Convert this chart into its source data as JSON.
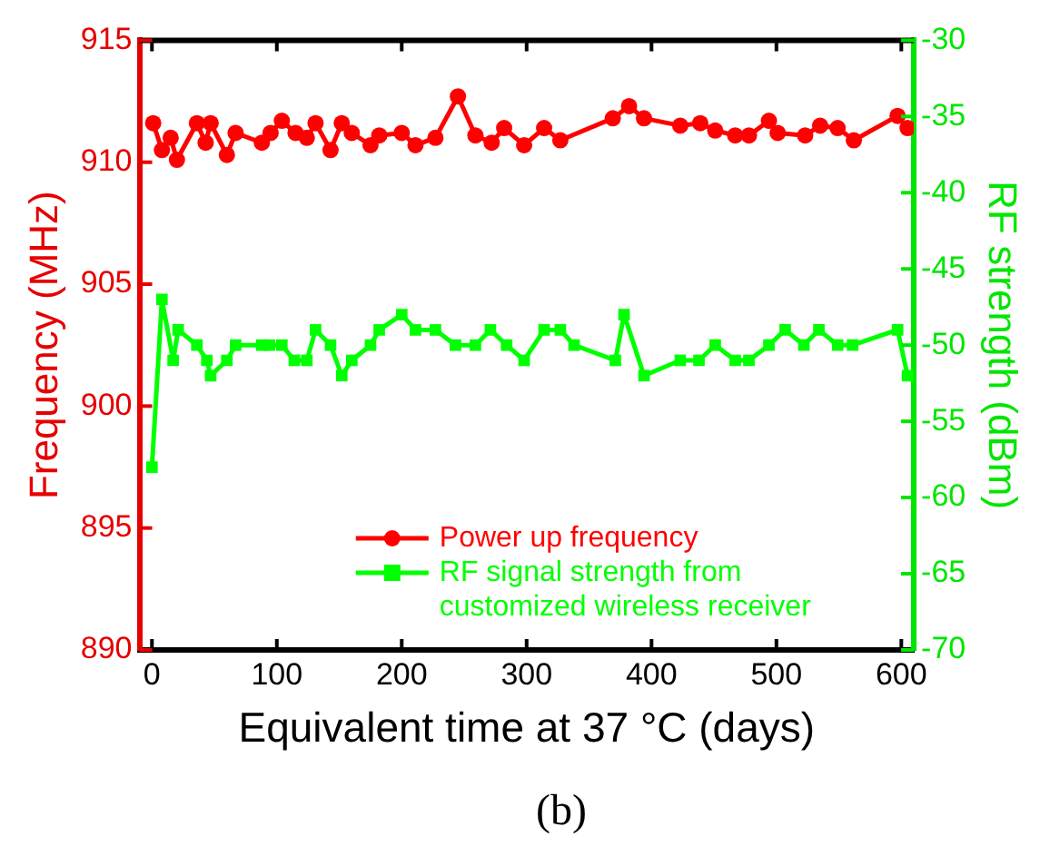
{
  "chart_data": {
    "type": "line",
    "xlabel": "Equivalent time at 37 °C (days)",
    "ylabel": "Frequency (MHz)",
    "y2label": "RF strength (dBm)",
    "xlim": [
      -10,
      610
    ],
    "xticks": [
      0,
      100,
      200,
      300,
      400,
      500,
      600
    ],
    "ylim": [
      890,
      915
    ],
    "yticks": [
      890,
      895,
      900,
      905,
      910,
      915
    ],
    "y2lim": [
      -70,
      -30
    ],
    "y2ticks": [
      -70,
      -65,
      -60,
      -55,
      -50,
      -45,
      -40,
      -35,
      -30
    ],
    "legend": "bottom",
    "grid": false,
    "annotations": [
      "(b)"
    ],
    "series": [
      {
        "name": "Power up frequency",
        "color": "#ff0000",
        "marker": "circle",
        "x": [
          1,
          8,
          15,
          20,
          36,
          43,
          47,
          60,
          67,
          88,
          95,
          104,
          115,
          124,
          131,
          143,
          152,
          160,
          175,
          182,
          200,
          211,
          227,
          245,
          259,
          272,
          282,
          298,
          314,
          327,
          369,
          382,
          394,
          423,
          439,
          451,
          467,
          478,
          494,
          501,
          523,
          535,
          549,
          562,
          597,
          605
        ],
        "values": [
          911.6,
          910.5,
          911.0,
          910.1,
          911.6,
          910.8,
          911.6,
          910.3,
          911.2,
          910.8,
          911.2,
          911.7,
          911.2,
          911.0,
          911.6,
          910.5,
          911.6,
          911.2,
          910.7,
          911.1,
          911.2,
          910.7,
          911.0,
          912.7,
          911.1,
          910.8,
          911.4,
          910.7,
          911.4,
          910.9,
          911.8,
          912.3,
          911.8,
          911.5,
          911.6,
          911.3,
          911.1,
          911.1,
          911.7,
          911.2,
          911.1,
          911.5,
          911.4,
          910.9,
          911.9,
          911.4
        ]
      },
      {
        "name": "RF signal strength from customized wireless receiver",
        "color": "#00ff00",
        "marker": "square",
        "axis": "y2",
        "x": [
          0,
          8,
          17,
          21,
          36,
          44,
          47,
          60,
          67,
          88,
          94,
          104,
          114,
          124,
          131,
          143,
          152,
          160,
          175,
          182,
          200,
          211,
          227,
          243,
          259,
          271,
          284,
          298,
          314,
          327,
          338,
          371,
          378,
          394,
          423,
          438,
          451,
          467,
          478,
          494,
          507,
          522,
          534,
          549,
          561,
          597,
          605
        ],
        "values": [
          -58,
          -47,
          -51,
          -49,
          -50,
          -51,
          -52,
          -51,
          -50,
          -50,
          -50,
          -50,
          -51,
          -51,
          -49,
          -50,
          -52,
          -51,
          -50,
          -49,
          -48,
          -49,
          -49,
          -50,
          -50,
          -49,
          -50,
          -51,
          -49,
          -49,
          -50,
          -51,
          -48,
          -52,
          -51,
          -51,
          -50,
          -51,
          -51,
          -50,
          -49,
          -50,
          -49,
          -50,
          -50,
          -49,
          -52
        ]
      }
    ]
  }
}
